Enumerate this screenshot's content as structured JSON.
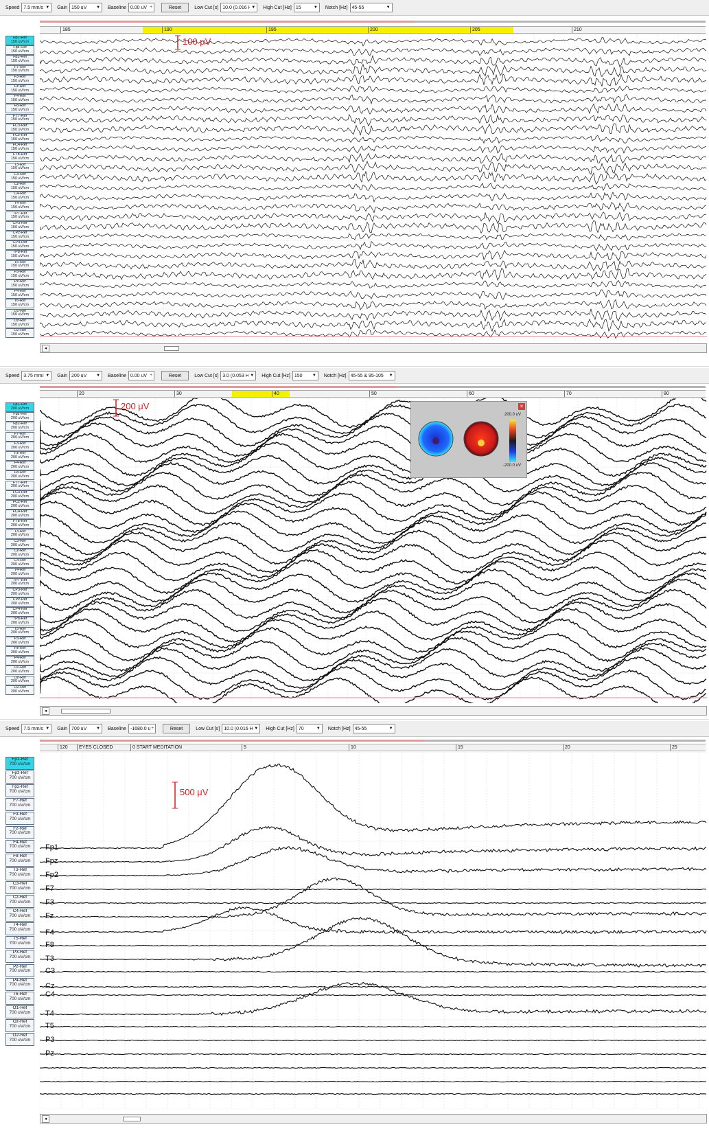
{
  "panels": [
    {
      "id": "panel1",
      "toolbar": {
        "speed_label": "Speed",
        "speed_value": "7.5 mm/s",
        "gain_label": "Gain",
        "gain_value": "150 uV",
        "baseline_label": "Baseline",
        "baseline_value": "0.00 uV",
        "reset_label": "Reset",
        "lowcut_label": "Low Cut [s]",
        "lowcut_value": "10.0 (0.016 Hz)",
        "highcut_label": "High Cut [Hz]",
        "highcut_value": "15",
        "notch_label": "Notch [Hz]",
        "notch_value": "45-55"
      },
      "time_ticks": [
        "185",
        "190",
        "195",
        "200",
        "205",
        "210"
      ],
      "scale_label": "100 μV",
      "channels": [
        {
          "name": "Fp1-Ref",
          "gain": "150 uV/cm",
          "selected": true
        },
        {
          "name": "Fpz-Ref",
          "gain": "150 uV/cm"
        },
        {
          "name": "Fp2-Ref",
          "gain": "150 uV/cm"
        },
        {
          "name": "F7-Ref",
          "gain": "150 uV/cm"
        },
        {
          "name": "F3-Ref",
          "gain": "150 uV/cm"
        },
        {
          "name": "Fz-Ref",
          "gain": "150 uV/cm"
        },
        {
          "name": "F4-Ref",
          "gain": "150 uV/cm"
        },
        {
          "name": "F8-Ref",
          "gain": "150 uV/cm"
        },
        {
          "name": "FT7-Ref",
          "gain": "150 uV/cm"
        },
        {
          "name": "FC3-Ref",
          "gain": "150 uV/cm"
        },
        {
          "name": "FCz-Ref",
          "gain": "150 uV/cm"
        },
        {
          "name": "FC4-Ref",
          "gain": "150 uV/cm"
        },
        {
          "name": "FT8-Ref",
          "gain": "150 uV/cm"
        },
        {
          "name": "T3-Ref",
          "gain": "150 uV/cm"
        },
        {
          "name": "C3-Ref",
          "gain": "150 uV/cm"
        },
        {
          "name": "Cz-Ref",
          "gain": "150 uV/cm"
        },
        {
          "name": "C4-Ref",
          "gain": "150 uV/cm"
        },
        {
          "name": "T4-Ref",
          "gain": "150 uV/cm"
        },
        {
          "name": "TP7-Ref",
          "gain": "150 uV/cm"
        },
        {
          "name": "CP3-Ref",
          "gain": "150 uV/cm"
        },
        {
          "name": "CPz-Ref",
          "gain": "150 uV/cm"
        },
        {
          "name": "CP4-Ref",
          "gain": "150 uV/cm"
        },
        {
          "name": "TP8-Ref",
          "gain": "150 uV/cm"
        },
        {
          "name": "T5-Ref",
          "gain": "150 uV/cm"
        },
        {
          "name": "P3-Ref",
          "gain": "150 uV/cm"
        },
        {
          "name": "Pz-Ref",
          "gain": "150 uV/cm"
        },
        {
          "name": "P4-Ref",
          "gain": "150 uV/cm"
        },
        {
          "name": "T6-Ref",
          "gain": "150 uV/cm"
        },
        {
          "name": "O1-Ref",
          "gain": "150 uV/cm"
        },
        {
          "name": "Oz-Ref",
          "gain": "150 uV/cm"
        },
        {
          "name": "O2-Ref",
          "gain": "150 uV/cm"
        }
      ]
    },
    {
      "id": "panel2",
      "toolbar": {
        "speed_label": "Speed",
        "speed_value": "3.75 mm/s",
        "gain_label": "Gain",
        "gain_value": "200 uV",
        "baseline_label": "Baseline",
        "baseline_value": "0.00 uV",
        "reset_label": "Reset",
        "lowcut_label": "Low Cut [s]",
        "lowcut_value": "3.0 (0.053 Hz)",
        "highcut_label": "High Cut [Hz]",
        "highcut_value": "150",
        "notch_label": "Notch [Hz]",
        "notch_value": "45-55 & 95-105"
      },
      "time_ticks": [
        "20",
        "30",
        "40",
        "50",
        "60",
        "70",
        "80"
      ],
      "scale_label": "200 μV",
      "popup": {
        "colorbar_max": "200.0 uV",
        "colorbar_min": "-200.0 uV"
      },
      "channels": [
        {
          "name": "Fp1-Ref",
          "gain": "200 uV/cm",
          "selected": true
        },
        {
          "name": "Fpz-Ref",
          "gain": "200 uV/cm"
        },
        {
          "name": "Fp2-Ref",
          "gain": "200 uV/cm"
        },
        {
          "name": "F7-Ref",
          "gain": "200 uV/cm"
        },
        {
          "name": "F3-Ref",
          "gain": "200 uV/cm"
        },
        {
          "name": "Fz-Ref",
          "gain": "200 uV/cm"
        },
        {
          "name": "F4-Ref",
          "gain": "200 uV/cm"
        },
        {
          "name": "F8-Ref",
          "gain": "200 uV/cm"
        },
        {
          "name": "FT7-Ref",
          "gain": "200 uV/cm"
        },
        {
          "name": "FC3-Ref",
          "gain": "200 uV/cm"
        },
        {
          "name": "FCz-Ref",
          "gain": "200 uV/cm"
        },
        {
          "name": "FC4-Ref",
          "gain": "200 uV/cm"
        },
        {
          "name": "FT8-Ref",
          "gain": "200 uV/cm"
        },
        {
          "name": "T3-Ref",
          "gain": "200 uV/cm"
        },
        {
          "name": "C3-Ref",
          "gain": "200 uV/cm"
        },
        {
          "name": "Cz-Ref",
          "gain": "200 uV/cm"
        },
        {
          "name": "C4-Ref",
          "gain": "200 uV/cm"
        },
        {
          "name": "T4-Ref",
          "gain": "200 uV/cm"
        },
        {
          "name": "TP7-Ref",
          "gain": "200 uV/cm"
        },
        {
          "name": "CP3-Ref",
          "gain": "200 uV/cm"
        },
        {
          "name": "CPz-Ref",
          "gain": "200 uV/cm"
        },
        {
          "name": "CP4-Ref",
          "gain": "200 uV/cm"
        },
        {
          "name": "TP8-Ref",
          "gain": "200 uV/cm"
        },
        {
          "name": "T5-Ref",
          "gain": "200 uV/cm"
        },
        {
          "name": "P3-Ref",
          "gain": "200 uV/cm"
        },
        {
          "name": "Pz-Ref",
          "gain": "200 uV/cm"
        },
        {
          "name": "P4-Ref",
          "gain": "200 uV/cm"
        },
        {
          "name": "O1-Ref",
          "gain": "200 uV/cm"
        },
        {
          "name": "Oz-Ref",
          "gain": "200 uV/cm"
        },
        {
          "name": "O2-Ref",
          "gain": "200 uV/cm"
        }
      ]
    },
    {
      "id": "panel3",
      "toolbar": {
        "speed_label": "Speed",
        "speed_value": "7.5 mm/s",
        "gain_label": "Gain",
        "gain_value": "700 uV",
        "baseline_label": "Baseline",
        "baseline_value": "-1680.0 uV",
        "reset_label": "Reset",
        "lowcut_label": "Low Cut [s]",
        "lowcut_value": "10.0 (0.016 Hz)",
        "highcut_label": "High Cut [Hz]",
        "highcut_value": "70",
        "notch_label": "Notch [Hz]",
        "notch_value": "45-55"
      },
      "time_ticks": [
        "120",
        "5",
        "10",
        "15",
        "20",
        "25"
      ],
      "annotations": [
        "EYES CLOSED",
        "0  START MEDITATION"
      ],
      "scale_label": "500 μV",
      "trace_labels": [
        "Fp1",
        "Fpz",
        "Fp2",
        "F7",
        "F3",
        "Fz",
        "F4",
        "F8",
        "T3",
        "C3",
        "Cz",
        "C4",
        "T4",
        "T5",
        "P3",
        "Pz"
      ],
      "channels": [
        {
          "name": "Fp1-Ref",
          "gain": "700 uV/cm",
          "selected": true
        },
        {
          "name": "Fpz-Ref",
          "gain": "700 uV/cm"
        },
        {
          "name": "Fp2-Ref",
          "gain": "700 uV/cm"
        },
        {
          "name": "F7-Ref",
          "gain": "700 uV/cm"
        },
        {
          "name": "F3-Ref",
          "gain": "700 uV/cm"
        },
        {
          "name": "Fz-Ref",
          "gain": "700 uV/cm"
        },
        {
          "name": "F4-Ref",
          "gain": "700 uV/cm"
        },
        {
          "name": "F8-Ref",
          "gain": "700 uV/cm"
        },
        {
          "name": "T3-Ref",
          "gain": "700 uV/cm"
        },
        {
          "name": "C3-Ref",
          "gain": "700 uV/cm"
        },
        {
          "name": "Cz-Ref",
          "gain": "700 uV/cm"
        },
        {
          "name": "C4-Ref",
          "gain": "700 uV/cm"
        },
        {
          "name": "T4-Ref",
          "gain": "700 uV/cm"
        },
        {
          "name": "T5-Ref",
          "gain": "700 uV/cm"
        },
        {
          "name": "P3-Ref",
          "gain": "700 uV/cm"
        },
        {
          "name": "Pz-Ref",
          "gain": "700 uV/cm"
        },
        {
          "name": "P4-Ref",
          "gain": "700 uV/cm"
        },
        {
          "name": "T6-Ref",
          "gain": "700 uV/cm"
        },
        {
          "name": "O1-Ref",
          "gain": "700 uV/cm"
        },
        {
          "name": "Oz-Ref",
          "gain": "700 uV/cm"
        },
        {
          "name": "O2-Ref",
          "gain": "700 uV/cm"
        }
      ]
    }
  ],
  "colors": {
    "selected_channel": "#33d6e6",
    "highlight": "#f5f000",
    "scale": "#d41f1f",
    "trace": "#111111",
    "grid": "#cfd6e2"
  }
}
